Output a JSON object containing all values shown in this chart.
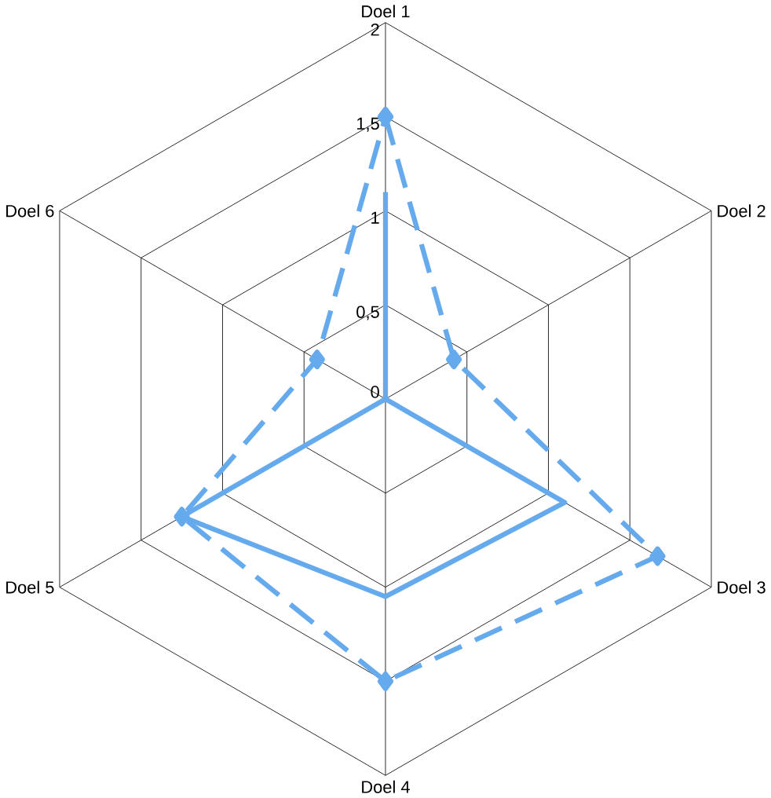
{
  "chart_data": {
    "type": "radar",
    "categories": [
      "Doel 1",
      "Doel 2",
      "Doel 3",
      "Doel 4",
      "Doel 5",
      "Doel 6"
    ],
    "ylim": [
      0,
      2
    ],
    "yticks": [
      0,
      {
        "value": 0.5,
        "label": "0,5"
      },
      1,
      {
        "value": 1.5,
        "label": "1,5"
      },
      2
    ],
    "grid": true,
    "series": [
      {
        "color": "#66aaee",
        "line_style": "solid",
        "marker": "none",
        "values": [
          1.1,
          0,
          1.1,
          1.05,
          1.25,
          0
        ]
      },
      {
        "color": "#66aaee",
        "line_style": "dashed",
        "marker": "diamond",
        "values": [
          1.5,
          0.42,
          1.67,
          1.5,
          1.25,
          0.42
        ]
      }
    ]
  }
}
